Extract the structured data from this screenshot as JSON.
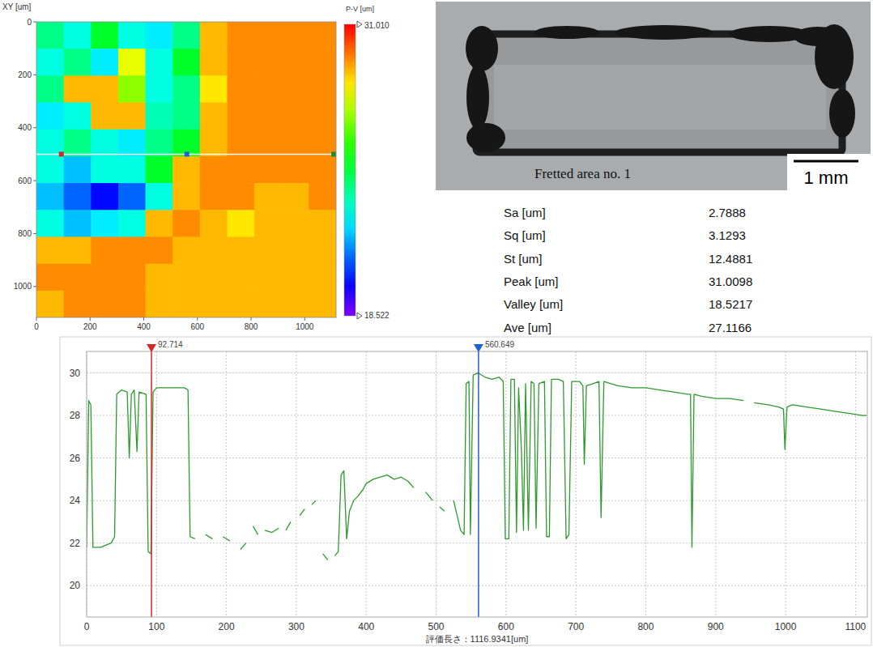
{
  "chart_data": [
    {
      "type": "heatmap",
      "title": "XY [um]",
      "xlim": [
        0,
        1116.9341
      ],
      "ylim": [
        0,
        1116.9341
      ],
      "xticks": [
        0,
        200,
        400,
        600,
        800,
        1000
      ],
      "yticks": [
        0,
        200,
        400,
        600,
        800,
        1000
      ],
      "cells": [
        [
          24,
          23,
          25,
          23,
          22.5,
          24,
          29,
          29.5,
          29.5,
          29.5,
          29.5
        ],
        [
          23,
          24,
          22.5,
          28,
          23,
          25,
          29,
          29.5,
          29.5,
          29.5,
          29.5
        ],
        [
          24,
          29,
          29,
          27,
          23,
          24,
          28.5,
          29.5,
          29.5,
          29.5,
          29.5
        ],
        [
          22.5,
          23,
          29,
          29,
          23.5,
          24,
          29,
          29.5,
          29.5,
          29.5,
          29.5
        ],
        [
          23,
          24,
          23,
          22.5,
          24,
          25,
          29,
          29.5,
          29.5,
          29.5,
          29.5
        ],
        [
          23,
          22,
          23,
          23,
          25,
          29,
          29.5,
          29.5,
          29.5,
          29.5,
          29.5
        ],
        [
          22,
          21,
          20,
          21,
          23,
          29,
          29.5,
          29.5,
          29,
          29,
          29.5
        ],
        [
          23,
          22,
          22.5,
          23,
          29,
          29.5,
          29,
          28.5,
          29,
          29,
          29
        ],
        [
          29,
          29,
          29.5,
          29.5,
          29.5,
          29,
          29,
          29,
          29,
          29,
          29
        ],
        [
          29.5,
          29.5,
          29.5,
          29.5,
          29,
          29,
          29,
          29,
          29,
          29,
          29
        ],
        [
          29,
          29.5,
          29.5,
          29.5,
          29,
          29,
          29,
          29,
          29,
          29,
          29
        ]
      ],
      "colorbar": {
        "title": "P-V [um]",
        "range": [
          18.522,
          31.01
        ],
        "ticks": [
          {
            "value": 31.01,
            "label": "31.010"
          },
          {
            "value": 18.522,
            "label": "18.522"
          }
        ]
      },
      "profile_y": 500
    },
    {
      "type": "line",
      "x_label": "評価長さ：1116.9341[um]",
      "xlim": [
        0,
        1116.9341
      ],
      "ylim": [
        18.522,
        31.01
      ],
      "xticks": [
        0,
        100,
        200,
        300,
        400,
        500,
        600,
        700,
        800,
        900,
        1000,
        1100
      ],
      "yticks": [
        20,
        22,
        24,
        26,
        28,
        30
      ],
      "grid": true,
      "cursors": [
        {
          "x": 92.714,
          "color": "#d62728"
        },
        {
          "x": 560.649,
          "color": "#1f5fd6"
        }
      ],
      "x": [
        0,
        3,
        6,
        9,
        20,
        35,
        40,
        43,
        50,
        58,
        61,
        64,
        68,
        72,
        75,
        85,
        88,
        92,
        95,
        100,
        120,
        140,
        145,
        148,
        155,
        160,
        170,
        180,
        185,
        195,
        205,
        210,
        220,
        228,
        232,
        238,
        245,
        250,
        255,
        265,
        275,
        280,
        285,
        292,
        298,
        305,
        312,
        318,
        322,
        328,
        333,
        338,
        345,
        350,
        355,
        360,
        364,
        368,
        372,
        376,
        382,
        388,
        395,
        400,
        410,
        420,
        430,
        440,
        450,
        460,
        468,
        472,
        485,
        495,
        500,
        505,
        512,
        518,
        525,
        535,
        540,
        543,
        547,
        549,
        553,
        560,
        570,
        580,
        590,
        596,
        599,
        604,
        607,
        612,
        615,
        618,
        622,
        625,
        628,
        632,
        636,
        640,
        643,
        647,
        655,
        658,
        662,
        665,
        675,
        682,
        686,
        690,
        694,
        705,
        710,
        712,
        715,
        725,
        733,
        736,
        740,
        760,
        780,
        800,
        820,
        840,
        860,
        864,
        866,
        869,
        880,
        900,
        920,
        940,
        945,
        955,
        975,
        990,
        997,
        999,
        1002,
        1010,
        1030,
        1050,
        1070,
        1090,
        1110,
        1116
      ],
      "series": [
        {
          "color": "#2e9a2e",
          "values": [
            21.8,
            28.7,
            28.5,
            21.8,
            21.8,
            22,
            22.3,
            29,
            29.2,
            29.1,
            26,
            29,
            29.2,
            26.3,
            29.1,
            29,
            21.6,
            21.5,
            29.1,
            29.3,
            29.3,
            29.3,
            29.2,
            22.3,
            22.2,
            null,
            22.4,
            22.2,
            null,
            22.3,
            22.1,
            null,
            21.7,
            22,
            null,
            22.8,
            22.4,
            null,
            22.6,
            22.5,
            22.7,
            null,
            22.6,
            23,
            null,
            23.3,
            23.6,
            null,
            23.8,
            24,
            null,
            21.5,
            21.2,
            null,
            21.4,
            21.6,
            25.2,
            25.4,
            22.2,
            23.5,
            24,
            24.2,
            24.5,
            24.8,
            25,
            25.1,
            25.2,
            25,
            25.1,
            24.9,
            24.6,
            null,
            24.4,
            24,
            null,
            23.7,
            23.5,
            null,
            24,
            22.6,
            22.4,
            29.5,
            29.6,
            22.4,
            29.9,
            30,
            29.8,
            29.7,
            29.8,
            29.6,
            22.2,
            22.2,
            29.7,
            29.7,
            22.5,
            29.3,
            26.4,
            22.6,
            29.5,
            22.6,
            29.6,
            29.5,
            22.7,
            29.5,
            29.6,
            22.3,
            22.3,
            29.7,
            29.7,
            29.6,
            22.2,
            22.4,
            29.6,
            29.6,
            29.4,
            25.7,
            29.4,
            29.5,
            29.6,
            23.2,
            29.6,
            29.4,
            29.3,
            29.3,
            29.2,
            29.1,
            29,
            29,
            21.8,
            29,
            28.9,
            28.8,
            28.8,
            28.7,
            null,
            28.6,
            28.5,
            28.4,
            28.3,
            26.4,
            28.4,
            28.5,
            28.4,
            28.3,
            28.2,
            28.1,
            28,
            28
          ]
        }
      ]
    }
  ],
  "photo": {
    "caption": "Fretted area no. 1",
    "scale_bar": "1 mm"
  },
  "table": {
    "rows": [
      [
        "Sa [um]",
        "2.7888"
      ],
      [
        "Sq [um]",
        "3.1293"
      ],
      [
        "St [um]",
        "12.4881"
      ],
      [
        "Peak [um]",
        "31.0098"
      ],
      [
        "Valley [um]",
        "18.5217"
      ],
      [
        "Ave [um]",
        "27.1166"
      ]
    ]
  }
}
